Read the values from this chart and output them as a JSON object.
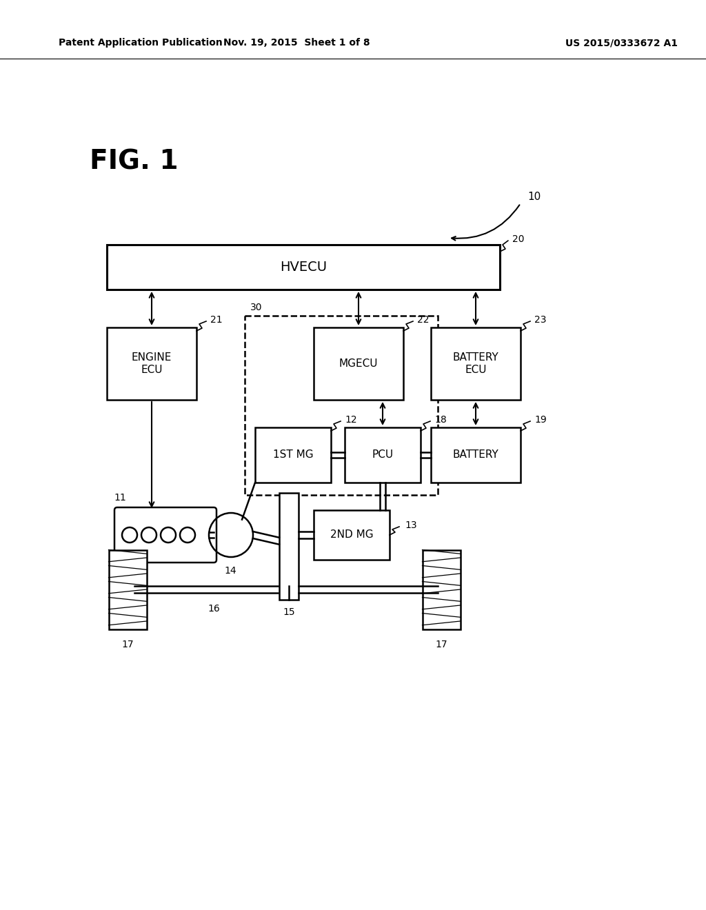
{
  "bg_color": "#ffffff",
  "header_left": "Patent Application Publication",
  "header_mid": "Nov. 19, 2015  Sheet 1 of 8",
  "header_right": "US 2015/0333672 A1",
  "fig_label": "FIG. 1",
  "label_10": "10",
  "label_20": "20",
  "label_21": "21",
  "label_22": "22",
  "label_23": "23",
  "label_30": "30",
  "label_11": "11",
  "label_12": "12",
  "label_13": "13",
  "label_14": "14",
  "label_15": "15",
  "label_16": "16",
  "label_17a": "17",
  "label_17b": "17",
  "label_18": "18",
  "label_19": "19",
  "box_hvecu_text": "HVECU",
  "box_engine_ecu_text": "ENGINE\nECU",
  "box_mgecu_text": "MGECU",
  "box_battery_ecu_text": "BATTERY\nECU",
  "box_1st_mg_text": "1ST MG",
  "box_pcu_text": "PCU",
  "box_battery_text": "BATTERY",
  "box_2nd_mg_text": "2ND MG"
}
